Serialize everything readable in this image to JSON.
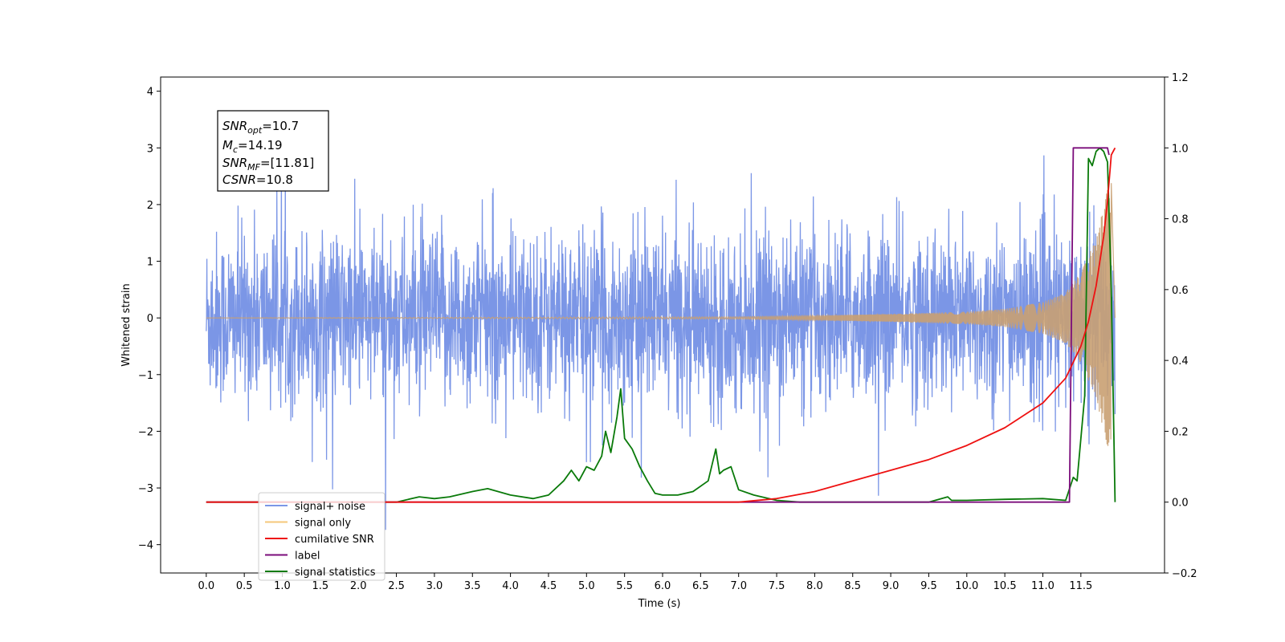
{
  "chart_data": {
    "type": "line",
    "xlabel": "Time (s)",
    "ylabel": "Whitened strain",
    "xlim": [
      -0.6,
      12.6
    ],
    "ylim": [
      -4.5,
      4.25
    ],
    "y2lim": [
      -0.2,
      1.2
    ],
    "grid": false,
    "x_ticks": [
      "0.0",
      "0.5",
      "1.0",
      "1.5",
      "2.0",
      "2.5",
      "3.0",
      "3.5",
      "4.0",
      "4.5",
      "5.0",
      "5.5",
      "6.0",
      "6.5",
      "7.0",
      "7.5",
      "8.0",
      "8.5",
      "9.0",
      "9.5",
      "10.0",
      "10.5",
      "11.0",
      "11.5"
    ],
    "y_ticks": [
      "4",
      "3",
      "2",
      "1",
      "0",
      "−1",
      "−2",
      "−3",
      "−4"
    ],
    "y2_ticks": [
      "1.2",
      "1.0",
      "0.8",
      "0.6",
      "0.4",
      "0.2",
      "0.0",
      "−0.2"
    ],
    "annotation": {
      "snr_opt": {
        "name": "SNR",
        "sub": "opt",
        "value": "=10.7"
      },
      "mc": {
        "name": "M",
        "sub": "c",
        "value": "=14.19"
      },
      "snr_mf": {
        "name": "SNR",
        "sub": "MF",
        "value": "=[11.81]"
      },
      "csnr": {
        "name": "CSNR",
        "value": "=10.8"
      }
    },
    "legend": {
      "placement": "lower-left",
      "items": [
        {
          "label": "signal+ noise",
          "color": "#7b96e6"
        },
        {
          "label": "signal only",
          "color": "#f5c77a"
        },
        {
          "label": "cumilative SNR",
          "color": "#ee1111"
        },
        {
          "label": "label",
          "color": "#7b0c7b"
        },
        {
          "label": "signal statistics",
          "color": "#0a7a0a"
        }
      ]
    },
    "series": [
      {
        "name": "signal+ noise",
        "axis": "left",
        "description_values": {
          "t_range": [
            0.0,
            11.95
          ],
          "typical_range": [
            -2.0,
            2.3
          ],
          "extreme_max": 3.85,
          "extreme_min": -4.1
        }
      },
      {
        "name": "signal only",
        "axis": "left",
        "envelope": {
          "t": [
            0,
            7.0,
            8.0,
            9.0,
            10.0,
            10.5,
            11.0,
            11.3,
            11.5,
            11.7,
            11.8,
            11.85,
            11.9
          ],
          "amp": [
            0,
            0.02,
            0.04,
            0.07,
            0.11,
            0.16,
            0.28,
            0.45,
            0.8,
            1.4,
            2.0,
            2.3,
            2.5
          ]
        }
      },
      {
        "name": "cumilative SNR",
        "axis": "right",
        "x": [
          0,
          7.0,
          7.5,
          8.0,
          8.5,
          9.0,
          9.5,
          10.0,
          10.5,
          11.0,
          11.3,
          11.5,
          11.6,
          11.7,
          11.8,
          11.85,
          11.9,
          11.95
        ],
        "y": [
          0,
          0,
          0.01,
          0.03,
          0.06,
          0.09,
          0.12,
          0.16,
          0.21,
          0.28,
          0.35,
          0.44,
          0.51,
          0.61,
          0.75,
          0.85,
          0.98,
          1.0
        ]
      },
      {
        "name": "label",
        "axis": "right",
        "x": [
          0,
          11.35,
          11.4,
          11.85,
          11.87
        ],
        "y": [
          0,
          0,
          1.0,
          1.0,
          0.98
        ]
      },
      {
        "name": "signal statistics",
        "axis": "right",
        "x": [
          0,
          2.5,
          2.8,
          3.0,
          3.2,
          3.5,
          3.7,
          4.0,
          4.3,
          4.5,
          4.7,
          4.8,
          4.9,
          5.0,
          5.1,
          5.2,
          5.25,
          5.32,
          5.4,
          5.45,
          5.5,
          5.6,
          5.7,
          5.8,
          5.9,
          6.0,
          6.1,
          6.2,
          6.4,
          6.6,
          6.7,
          6.75,
          6.8,
          6.9,
          7.0,
          7.2,
          7.5,
          7.8,
          8.0,
          9.5,
          9.75,
          9.8,
          10.0,
          10.5,
          11.0,
          11.3,
          11.4,
          11.45,
          11.55,
          11.6,
          11.65,
          11.7,
          11.75,
          11.8,
          11.85,
          11.9,
          11.95
        ],
        "y": [
          0,
          0,
          0.015,
          0.01,
          0.015,
          0.03,
          0.038,
          0.02,
          0.01,
          0.02,
          0.06,
          0.09,
          0.06,
          0.1,
          0.09,
          0.13,
          0.2,
          0.14,
          0.24,
          0.32,
          0.18,
          0.15,
          0.1,
          0.06,
          0.025,
          0.02,
          0.02,
          0.02,
          0.03,
          0.06,
          0.15,
          0.08,
          0.09,
          0.1,
          0.035,
          0.02,
          0.005,
          0,
          0,
          0,
          0.015,
          0.005,
          0.005,
          0.008,
          0.01,
          0.005,
          0.07,
          0.06,
          0.3,
          0.97,
          0.95,
          0.99,
          1.0,
          0.99,
          0.96,
          0.6,
          0
        ]
      }
    ]
  }
}
